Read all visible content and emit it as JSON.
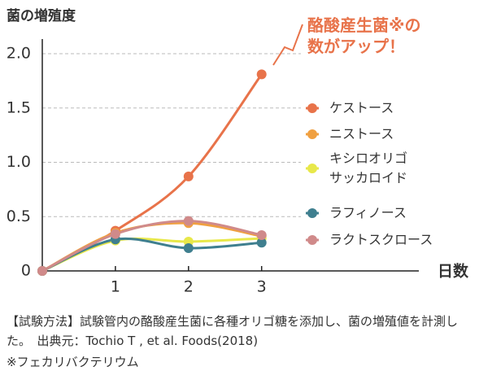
{
  "chart_data": {
    "type": "line",
    "ylabel": "菌の増殖度",
    "xlabel": "日数",
    "annotation": "酪酸産生菌※の\n数がアップ！",
    "x": [
      0,
      1,
      2,
      3
    ],
    "xlim": [
      0,
      5.15
    ],
    "xticks": [
      1,
      2,
      3
    ],
    "ylim": [
      0,
      2.0
    ],
    "yticks": [
      0,
      0.5,
      {
        "value": 1.0,
        "label": "1.0"
      },
      1.5,
      {
        "value": 2.0,
        "label": "2.0"
      }
    ],
    "grid": true,
    "series": [
      {
        "name": "ケストース",
        "color": "#e8734a",
        "values": [
          0,
          0.37,
          0.87,
          1.81
        ]
      },
      {
        "name": "ニストース",
        "color": "#f0a040",
        "values": [
          0,
          0.35,
          0.44,
          0.32
        ]
      },
      {
        "name": "キシロオリゴ\nサッカロイド",
        "color": "#e8e84a",
        "values": [
          0,
          0.28,
          0.27,
          0.3
        ]
      },
      {
        "name": "ラフィノース",
        "color": "#3f7f8f",
        "values": [
          0,
          0.29,
          0.21,
          0.26
        ]
      },
      {
        "name": "ラクトスクロース",
        "color": "#d08a8a",
        "values": [
          0,
          0.34,
          0.46,
          0.33
        ]
      }
    ],
    "notes": [
      "【試験方法】試験管内の酪酸産生菌に各種オリゴ糖を添加し、菌の増殖値を計測した。　出典元：Tochio T , et al. Foods(2018)",
      "※フェカリバクテリウム"
    ]
  }
}
